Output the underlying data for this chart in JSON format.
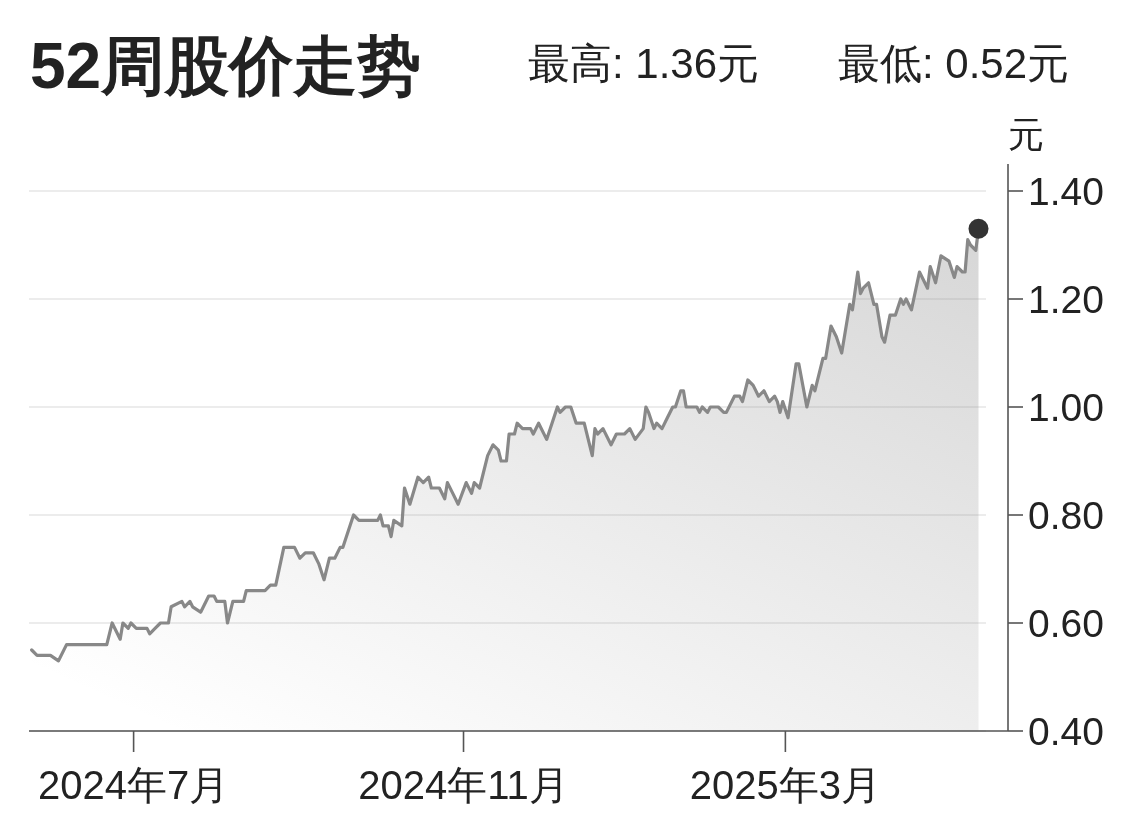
{
  "chart_data": {
    "type": "area",
    "title": "52周股价走势",
    "annotations": [
      "最高: 1.36元",
      "最低: 0.52元"
    ],
    "ylabel": "元",
    "xlim": [
      "2024-05-23",
      "2025-05-23"
    ],
    "ylim": [
      0.4,
      1.45
    ],
    "xticks": [
      {
        "value": "2024-07-01",
        "label": "2024年7月"
      },
      {
        "value": "2024-11-01",
        "label": "2024年11月"
      },
      {
        "value": "2025-03-01",
        "label": "2025年3月"
      }
    ],
    "yticks": [
      {
        "value": 0.4,
        "label": "0.40"
      },
      {
        "value": 0.6,
        "label": "0.60"
      },
      {
        "value": 0.8,
        "label": "0.80"
      },
      {
        "value": 1.0,
        "label": "1.00"
      },
      {
        "value": 1.2,
        "label": "1.20"
      },
      {
        "value": 1.4,
        "label": "1.40"
      }
    ],
    "grid": "y",
    "series": [
      {
        "color": "#888888",
        "x": [
          "2024-05-24",
          "2024-05-26",
          "2024-05-31",
          "2024-06-03",
          "2024-06-06",
          "2024-06-21",
          "2024-06-23",
          "2024-06-26",
          "2024-06-27",
          "2024-06-29",
          "2024-06-30",
          "2024-07-02",
          "2024-07-06",
          "2024-07-07",
          "2024-07-09",
          "2024-07-11",
          "2024-07-14",
          "2024-07-15",
          "2024-07-19",
          "2024-07-20",
          "2024-07-22",
          "2024-07-23",
          "2024-07-26",
          "2024-07-29",
          "2024-07-31",
          "2024-08-01",
          "2024-08-04",
          "2024-08-05",
          "2024-08-07",
          "2024-08-11",
          "2024-08-12",
          "2024-08-19",
          "2024-08-21",
          "2024-08-23",
          "2024-08-26",
          "2024-08-30",
          "2024-09-01",
          "2024-09-03",
          "2024-09-06",
          "2024-09-08",
          "2024-09-10",
          "2024-09-12",
          "2024-09-14",
          "2024-09-16",
          "2024-09-17",
          "2024-09-21",
          "2024-09-23",
          "2024-09-30",
          "2024-10-01",
          "2024-10-02",
          "2024-10-04",
          "2024-10-05",
          "2024-10-06",
          "2024-10-09",
          "2024-10-10",
          "2024-10-12",
          "2024-10-15",
          "2024-10-17",
          "2024-10-19",
          "2024-10-20",
          "2024-10-23",
          "2024-10-25",
          "2024-10-26",
          "2024-10-28",
          "2024-10-30",
          "2024-11-02",
          "2024-11-04",
          "2024-11-05",
          "2024-11-07",
          "2024-11-10",
          "2024-11-12",
          "2024-11-14",
          "2024-11-15",
          "2024-11-17",
          "2024-11-18",
          "2024-11-20",
          "2024-11-21",
          "2024-11-23",
          "2024-11-26",
          "2024-11-27",
          "2024-11-29",
          "2024-12-02",
          "2024-12-06",
          "2024-12-07",
          "2024-12-09",
          "2024-12-11",
          "2024-12-13",
          "2024-12-16",
          "2024-12-19",
          "2024-12-20",
          "2024-12-21",
          "2024-12-23",
          "2024-12-26",
          "2024-12-28",
          "2024-12-31",
          "2025-01-02",
          "2025-01-04",
          "2025-01-07",
          "2025-01-08",
          "2025-01-09",
          "2025-01-11",
          "2025-01-12",
          "2025-01-14",
          "2025-01-16",
          "2025-01-18",
          "2025-01-19",
          "2025-01-21",
          "2025-01-22",
          "2025-01-23",
          "2025-01-27",
          "2025-01-28",
          "2025-01-29",
          "2025-01-31",
          "2025-02-01",
          "2025-02-04",
          "2025-02-06",
          "2025-02-07",
          "2025-02-10",
          "2025-02-12",
          "2025-02-13",
          "2025-02-15",
          "2025-02-17",
          "2025-02-19",
          "2025-02-21",
          "2025-02-23",
          "2025-02-25",
          "2025-02-26",
          "2025-02-27",
          "2025-02-28",
          "2025-03-02",
          "2025-03-05",
          "2025-03-06",
          "2025-03-09",
          "2025-03-11",
          "2025-03-12",
          "2025-03-15",
          "2025-03-16",
          "2025-03-18",
          "2025-03-20",
          "2025-03-22",
          "2025-03-25",
          "2025-03-26",
          "2025-03-28",
          "2025-03-29",
          "2025-03-30",
          "2025-04-01",
          "2025-04-03",
          "2025-04-04",
          "2025-04-06",
          "2025-04-07",
          "2025-04-09",
          "2025-04-11",
          "2025-04-13",
          "2025-04-14",
          "2025-04-15",
          "2025-04-17",
          "2025-04-20",
          "2025-04-23",
          "2025-04-24",
          "2025-04-26",
          "2025-04-28",
          "2025-05-01",
          "2025-05-03",
          "2025-05-04",
          "2025-05-06",
          "2025-05-07",
          "2025-05-08",
          "2025-05-09",
          "2025-05-11",
          "2025-05-12"
        ],
        "values": [
          0.55,
          0.54,
          0.54,
          0.53,
          0.56,
          0.56,
          0.6,
          0.57,
          0.6,
          0.59,
          0.6,
          0.59,
          0.59,
          0.58,
          0.59,
          0.6,
          0.6,
          0.63,
          0.64,
          0.63,
          0.64,
          0.63,
          0.62,
          0.65,
          0.65,
          0.64,
          0.64,
          0.6,
          0.64,
          0.64,
          0.66,
          0.66,
          0.67,
          0.67,
          0.74,
          0.74,
          0.72,
          0.73,
          0.73,
          0.71,
          0.68,
          0.72,
          0.72,
          0.74,
          0.74,
          0.8,
          0.79,
          0.79,
          0.8,
          0.78,
          0.78,
          0.76,
          0.79,
          0.78,
          0.85,
          0.82,
          0.87,
          0.86,
          0.87,
          0.85,
          0.85,
          0.83,
          0.86,
          0.84,
          0.82,
          0.86,
          0.84,
          0.86,
          0.85,
          0.91,
          0.93,
          0.92,
          0.9,
          0.9,
          0.95,
          0.95,
          0.97,
          0.96,
          0.96,
          0.95,
          0.97,
          0.94,
          1.0,
          0.99,
          1.0,
          1.0,
          0.97,
          0.97,
          0.91,
          0.96,
          0.95,
          0.96,
          0.93,
          0.95,
          0.95,
          0.96,
          0.94,
          0.96,
          1.0,
          0.99,
          0.96,
          0.97,
          0.96,
          0.98,
          1.0,
          1.0,
          1.03,
          1.03,
          1.0,
          1.0,
          0.99,
          1.0,
          0.99,
          1.0,
          1.0,
          0.99,
          0.99,
          1.02,
          1.02,
          1.01,
          1.05,
          1.04,
          1.02,
          1.03,
          1.01,
          1.02,
          1.01,
          0.99,
          1.01,
          0.98,
          1.08,
          1.08,
          1.0,
          1.04,
          1.03,
          1.09,
          1.09,
          1.15,
          1.13,
          1.1,
          1.19,
          1.18,
          1.25,
          1.21,
          1.22,
          1.23,
          1.19,
          1.19,
          1.13,
          1.12,
          1.17,
          1.17,
          1.2,
          1.19,
          1.2,
          1.18,
          1.25,
          1.22,
          1.26,
          1.23,
          1.28,
          1.27,
          1.24,
          1.26,
          1.25,
          1.25,
          1.31,
          1.3,
          1.29,
          1.33
        ]
      },
      {
        "type": "scatter",
        "color": "#333333",
        "marker": "circle",
        "x": [
          "2025-05-12"
        ],
        "values": [
          1.33
        ]
      }
    ]
  }
}
